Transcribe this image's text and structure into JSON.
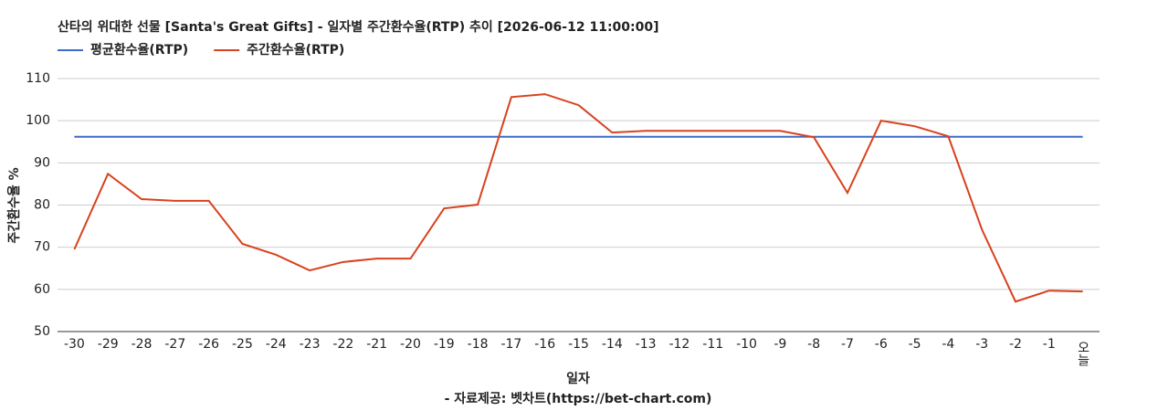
{
  "chart_data": {
    "type": "line",
    "title": "산타의 위대한 선물 [Santa's Great Gifts] - 일자별 주간환수율(RTP) 추이 [2026-06-12 11:00:00]",
    "x_label": "일자",
    "y_label": "주간환수율 %",
    "source": "- 자료제공: 벳차트(https://bet-chart.com)",
    "categories": [
      "-30",
      "-29",
      "-28",
      "-27",
      "-26",
      "-25",
      "-24",
      "-23",
      "-22",
      "-21",
      "-20",
      "-19",
      "-18",
      "-17",
      "-16",
      "-15",
      "-14",
      "-13",
      "-12",
      "-11",
      "-10",
      "-9",
      "-8",
      "-7",
      "-6",
      "-5",
      "-4",
      "-3",
      "-2",
      "-1",
      "오늘"
    ],
    "series": [
      {
        "name": "평균환수율(RTP)",
        "color": "#3d6cc7",
        "values": [
          96.2,
          96.2,
          96.2,
          96.2,
          96.2,
          96.2,
          96.2,
          96.2,
          96.2,
          96.2,
          96.2,
          96.2,
          96.2,
          96.2,
          96.2,
          96.2,
          96.2,
          96.2,
          96.2,
          96.2,
          96.2,
          96.2,
          96.2,
          96.2,
          96.2,
          96.2,
          96.2,
          96.2,
          96.2,
          96.2,
          96.2
        ]
      },
      {
        "name": "주간환수율(RTP)",
        "color": "#d8421e",
        "values": [
          69.5,
          87.4,
          81.4,
          81.0,
          81.0,
          70.8,
          68.2,
          64.5,
          66.5,
          67.3,
          67.3,
          79.2,
          80.1,
          105.6,
          106.3,
          103.7,
          97.2,
          97.6,
          97.6,
          97.6,
          97.6,
          97.6,
          96.1,
          82.9,
          100.0,
          98.7,
          96.3,
          74.2,
          57.1,
          59.7,
          59.5
        ]
      }
    ],
    "ylim": [
      50,
      110
    ],
    "yticks": [
      50,
      60,
      70,
      80,
      90,
      100,
      110
    ],
    "grid": true
  }
}
